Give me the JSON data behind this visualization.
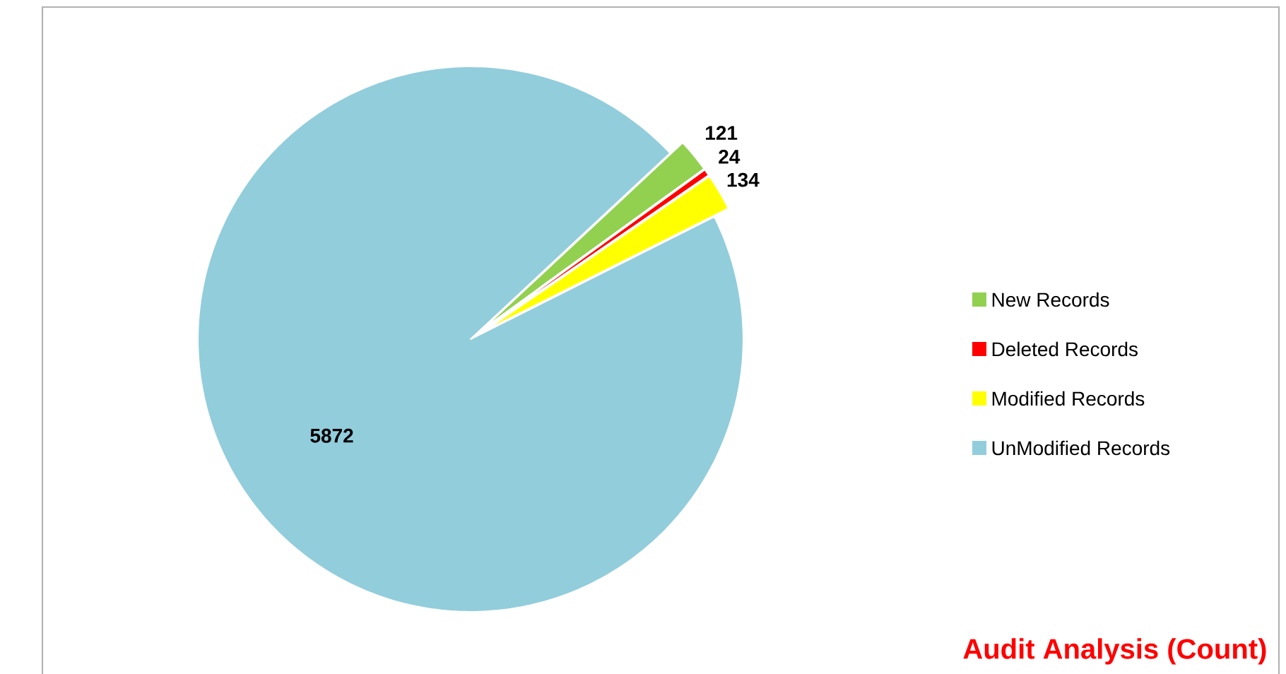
{
  "chart_data": {
    "type": "pie",
    "title": "Audit Analysis (Count)",
    "categories": [
      "New Records",
      "Deleted Records",
      "Modified Records",
      "UnModified Records"
    ],
    "values": [
      121,
      24,
      134,
      5872
    ],
    "colors": [
      "#92d050",
      "#ff0000",
      "#ffff00",
      "#92cddc"
    ],
    "data_labels": true,
    "legend": "right"
  }
}
